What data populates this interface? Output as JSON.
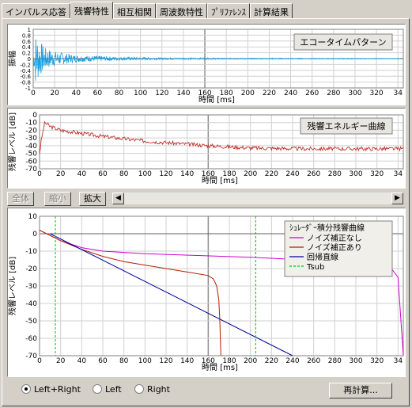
{
  "tabs": [
    "インパルス応答",
    "残響特性",
    "相互相関",
    "周波数特性",
    "ﾌﾟﾘﾌｧﾚﾝｽ",
    "計算結果"
  ],
  "active_tab": 1,
  "x_tick_labels": [
    "0",
    "20",
    "40",
    "60",
    "80",
    "100",
    "120",
    "140",
    "160",
    "180",
    "200",
    "220",
    "240",
    "260",
    "280",
    "300",
    "320",
    "34"
  ],
  "x_axis_label": "時間 [ms]",
  "echo_chart": {
    "title": "エコータイムパターン",
    "ylabel": "振幅",
    "y_ticks": [
      "1",
      "0.8",
      "0.6",
      "0.4",
      "0.2",
      "0",
      "-0.2",
      "-0.4",
      "-0.6",
      "-0.8",
      "-1"
    ],
    "color": "#1ba0e0"
  },
  "energy_chart": {
    "title": "残響エネルギー曲線",
    "ylabel": "残響レベル [dB]",
    "y_ticks": [
      "0",
      "-10",
      "-20",
      "-30",
      "-40",
      "-50",
      "-60",
      "-70"
    ],
    "color": "#c0302a"
  },
  "zoom_buttons": {
    "all": "全体",
    "shrink": "縮小",
    "expand": "拡大"
  },
  "schroeder_chart": {
    "ylabel": "残響レベル [dB]",
    "y_ticks": [
      "10",
      "0",
      "-10",
      "-20",
      "-30",
      "-40",
      "-50",
      "-60",
      "-70"
    ],
    "legend_title": "ｼｭﾚｰﾀﾞｰ積分残響曲線",
    "legend": [
      {
        "label": "ノイズ補正なし",
        "color": "#d000d0"
      },
      {
        "label": "ノイズ補正あり",
        "color": "#b02000"
      },
      {
        "label": "回帰直線",
        "color": "#0000a0"
      },
      {
        "label": "Tsub",
        "color": "#00c000"
      }
    ]
  },
  "chart_data": [
    {
      "type": "line",
      "title": "エコータイムパターン",
      "xlabel": "時間 [ms]",
      "ylabel": "振幅",
      "xlim": [
        0,
        345
      ],
      "ylim": [
        -1,
        1
      ],
      "series": [
        {
          "name": "",
          "x": [
            0,
            2,
            5,
            10,
            20,
            40,
            80,
            120,
            200,
            345
          ],
          "y": [
            0,
            0.9,
            -0.7,
            0.4,
            0.25,
            0.12,
            0.06,
            0.03,
            0.02,
            0.01
          ]
        }
      ]
    },
    {
      "type": "line",
      "title": "残響エネルギー曲線",
      "xlabel": "時間 [ms]",
      "ylabel": "残響レベル [dB]",
      "xlim": [
        0,
        345
      ],
      "ylim": [
        -70,
        0
      ],
      "series": [
        {
          "name": "",
          "x": [
            0,
            2,
            5,
            10,
            20,
            40,
            60,
            80,
            100,
            120,
            140,
            160,
            200,
            250,
            300,
            345
          ],
          "y": [
            -50,
            -30,
            -10,
            -15,
            -20,
            -24,
            -28,
            -31,
            -34,
            -36,
            -38,
            -40,
            -43,
            -44,
            -44,
            -44
          ]
        }
      ]
    },
    {
      "type": "line",
      "title": "ｼｭﾚｰﾀﾞｰ積分残響曲線",
      "xlabel": "時間 [ms]",
      "ylabel": "残響レベル [dB]",
      "xlim": [
        0,
        345
      ],
      "ylim": [
        -70,
        10
      ],
      "grid": true,
      "legend": "top-right",
      "series": [
        {
          "name": "ノイズ補正なし",
          "x": [
            0,
            10,
            20,
            40,
            60,
            100,
            150,
            200,
            250,
            300,
            330,
            340,
            345
          ],
          "y": [
            2,
            -1,
            -4,
            -8,
            -10,
            -11.5,
            -12.5,
            -13.5,
            -15,
            -16,
            -17,
            -25,
            -70
          ]
        },
        {
          "name": "ノイズ補正あり",
          "x": [
            0,
            10,
            20,
            40,
            60,
            80,
            100,
            120,
            140,
            160,
            165,
            168,
            170,
            171,
            172
          ],
          "y": [
            2,
            -1,
            -4,
            -9,
            -13,
            -16,
            -18,
            -20,
            -22,
            -24,
            -26,
            -30,
            -38,
            -50,
            -70
          ]
        },
        {
          "name": "回帰直線",
          "x": [
            10,
            240
          ],
          "y": [
            0,
            -70
          ]
        },
        {
          "name": "Tsub",
          "x": [
            15,
            15,
            205,
            205
          ],
          "y": [
            10,
            -70,
            10,
            -70
          ]
        }
      ]
    }
  ],
  "radio_options": [
    "Left+Right",
    "Left",
    "Right"
  ],
  "radio_selected": 0,
  "recalc_button": "再計算..."
}
